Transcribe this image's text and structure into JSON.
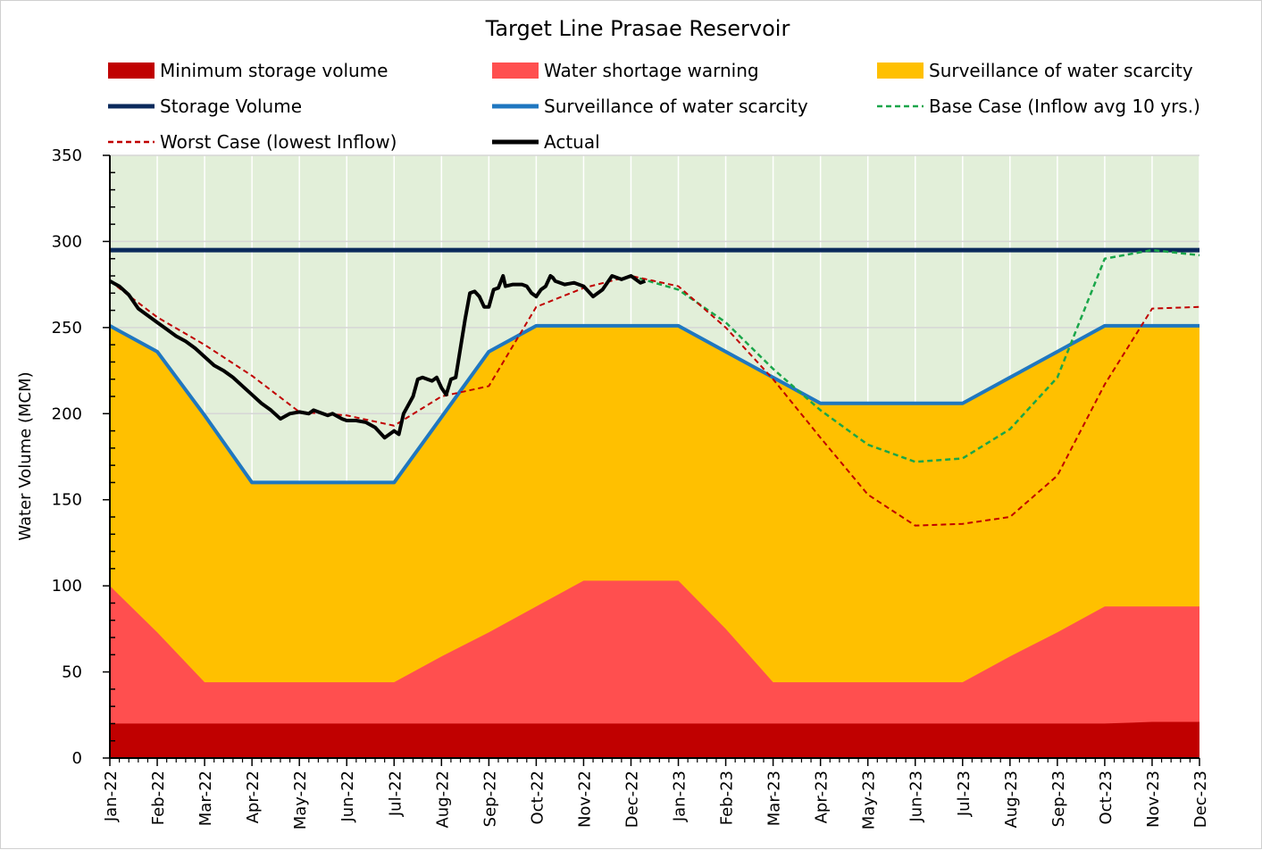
{
  "chart_data": {
    "type": "area",
    "title": "Target Line Prasae Reservoir",
    "xlabel": "",
    "ylabel": "Water Volume (MCM)",
    "ylim": [
      0,
      350
    ],
    "yticks": [
      0,
      50,
      100,
      150,
      200,
      250,
      300,
      350
    ],
    "grid": true,
    "legend_position": "top",
    "categories": [
      "Jan-22",
      "Feb-22",
      "Mar-22",
      "Apr-22",
      "May-22",
      "Jun-22",
      "Jul-22",
      "Aug-22",
      "Sep-22",
      "Oct-22",
      "Nov-22",
      "Dec-22",
      "Jan-23",
      "Feb-23",
      "Mar-23",
      "Apr-23",
      "May-23",
      "Jun-23",
      "Jul-23",
      "Aug-23",
      "Sep-23",
      "Oct-23",
      "Nov-23",
      "Dec-23"
    ],
    "bands": [
      {
        "name": "Minimum storage volume",
        "color": "#c00000",
        "values": [
          20,
          20,
          20,
          20,
          20,
          20,
          20,
          20,
          20,
          20,
          20,
          20,
          20,
          20,
          20,
          20,
          20,
          20,
          20,
          20,
          20,
          20,
          21,
          21
        ]
      },
      {
        "name": "Water shortage warning",
        "color": "#ff4f4f",
        "values": [
          100,
          73,
          44,
          44,
          44,
          44,
          44,
          59,
          73,
          88,
          103,
          103,
          103,
          75,
          44,
          44,
          44,
          44,
          44,
          59,
          73,
          88,
          88,
          88
        ]
      },
      {
        "name": "Surveillance of water scarcity",
        "color": "#ffc000",
        "values": [
          251,
          236,
          199,
          160,
          160,
          160,
          160,
          198,
          236,
          251,
          251,
          251,
          251,
          236,
          221,
          206,
          206,
          206,
          206,
          221,
          236,
          251,
          251,
          251
        ]
      }
    ],
    "lines": [
      {
        "name": "Storage Volume",
        "color": "#0b2a5c",
        "style": "solid",
        "width": 5,
        "x": [
          0,
          23
        ],
        "values": [
          295,
          295
        ]
      },
      {
        "name": "Surveillance of water scarcity",
        "color": "#1f77c0",
        "style": "solid",
        "width": 4,
        "x": [
          0,
          1,
          2,
          3,
          4,
          5,
          6,
          7,
          8,
          9,
          10,
          11,
          12,
          13,
          14,
          15,
          16,
          17,
          18,
          19,
          20,
          21,
          22,
          23
        ],
        "values": [
          251,
          236,
          199,
          160,
          160,
          160,
          160,
          198,
          236,
          251,
          251,
          251,
          251,
          236,
          221,
          206,
          206,
          206,
          206,
          221,
          236,
          251,
          251,
          251
        ]
      },
      {
        "name": "Base Case (Inflow avg 10 yrs.)",
        "color": "#1aa64a",
        "style": "dashed",
        "width": 2.5,
        "x": [
          11,
          12,
          13,
          14,
          15,
          16,
          17,
          18,
          19,
          20,
          21,
          22,
          23
        ],
        "values": [
          280,
          272,
          253,
          226,
          202,
          182,
          172,
          174,
          191,
          221,
          290,
          295,
          292
        ]
      },
      {
        "name": "Worst Case (lowest Inflow)",
        "color": "#c00000",
        "style": "dashed",
        "width": 2,
        "x": [
          0,
          1,
          2,
          3,
          4,
          5,
          6,
          7,
          8,
          9,
          10,
          11,
          12,
          13,
          14,
          15,
          16,
          17,
          18,
          19,
          20,
          21,
          22,
          23
        ],
        "values": [
          277,
          256,
          240,
          222,
          201,
          199,
          193,
          210,
          216,
          262,
          273,
          280,
          274,
          250,
          220,
          186,
          153,
          135,
          136,
          140,
          164,
          217,
          261,
          262
        ]
      },
      {
        "name": "Actual",
        "color": "#000000",
        "style": "solid",
        "width": 4,
        "x": [
          0,
          0.2,
          0.4,
          0.6,
          0.8,
          1.0,
          1.2,
          1.4,
          1.6,
          1.8,
          2.0,
          2.2,
          2.4,
          2.6,
          2.8,
          3.0,
          3.2,
          3.4,
          3.6,
          3.8,
          4.0,
          4.2,
          4.3,
          4.4,
          4.6,
          4.7,
          4.9,
          5.0,
          5.2,
          5.4,
          5.6,
          5.8,
          6.0,
          6.1,
          6.2,
          6.4,
          6.5,
          6.6,
          6.8,
          6.9,
          7.0,
          7.1,
          7.2,
          7.3,
          7.5,
          7.6,
          7.7,
          7.8,
          7.9,
          8.0,
          8.1,
          8.2,
          8.3,
          8.35,
          8.5,
          8.6,
          8.7,
          8.8,
          8.9,
          9.0,
          9.1,
          9.2,
          9.3,
          9.35,
          9.4,
          9.6,
          9.8,
          10.0,
          10.2,
          10.4,
          10.6,
          10.8,
          11.0,
          11.2,
          11.3
        ],
        "values": [
          277,
          274,
          269,
          261,
          257,
          253,
          249,
          245,
          242,
          238,
          233,
          228,
          225,
          221,
          216,
          211,
          206,
          202,
          197,
          200,
          201,
          200,
          202,
          201,
          199,
          200,
          197,
          196,
          196,
          195,
          192,
          186,
          190,
          188,
          200,
          210,
          220,
          221,
          219,
          221,
          215,
          211,
          220,
          221,
          255,
          270,
          271,
          268,
          262,
          262,
          272,
          273,
          280,
          274,
          275,
          275,
          275,
          274,
          270,
          268,
          272,
          274,
          280,
          279,
          277,
          275,
          276,
          274,
          268,
          272,
          280,
          278,
          280,
          276,
          277
        ]
      }
    ],
    "legend": [
      {
        "label": "Minimum storage volume",
        "kind": "box",
        "color": "#c00000"
      },
      {
        "label": "Water shortage warning",
        "kind": "box",
        "color": "#ff4f4f"
      },
      {
        "label": "Surveillance of water scarcity",
        "kind": "box",
        "color": "#ffc000"
      },
      {
        "label": "Storage Volume",
        "kind": "line",
        "color": "#0b2a5c",
        "dashed": false
      },
      {
        "label": "Surveillance of water scarcity",
        "kind": "line",
        "color": "#1f77c0",
        "dashed": false
      },
      {
        "label": "Base Case (Inflow avg 10 yrs.)",
        "kind": "line",
        "color": "#1aa64a",
        "dashed": true
      },
      {
        "label": "Worst Case (lowest Inflow)",
        "kind": "line",
        "color": "#c00000",
        "dashed": true
      },
      {
        "label": "Actual",
        "kind": "line",
        "color": "#000000",
        "dashed": false
      }
    ],
    "plot_background": "#e2efd9"
  }
}
